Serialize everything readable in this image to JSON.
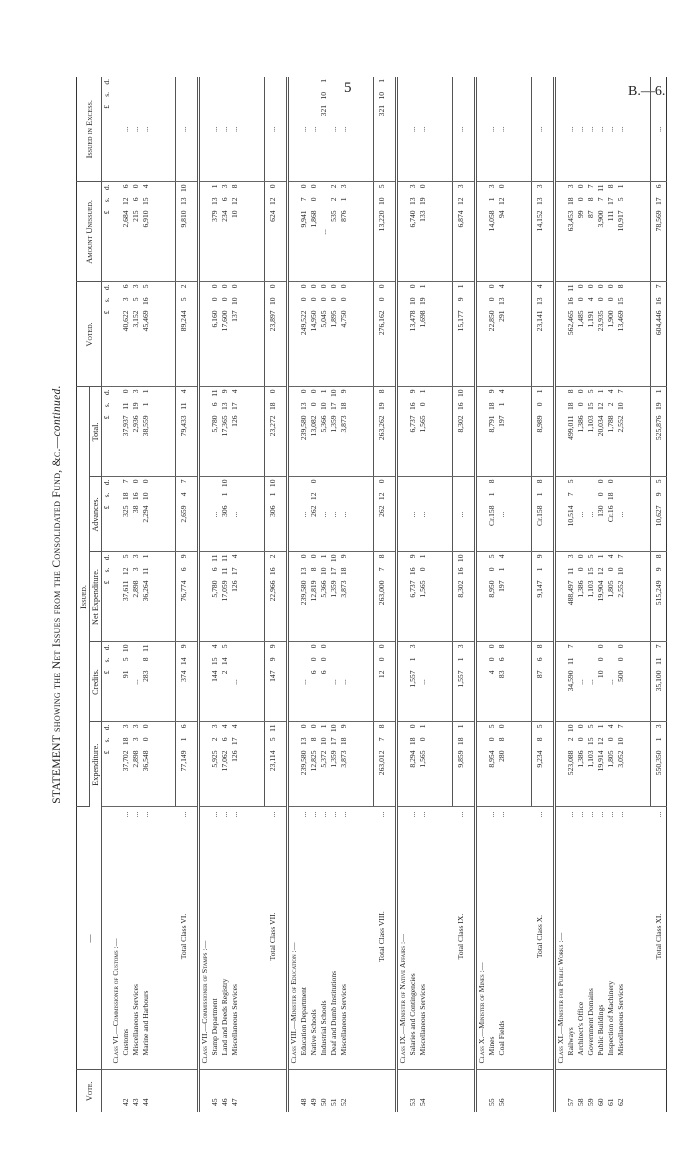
{
  "page_number": "5",
  "doc_ref": "B.—6.",
  "title_main": "STATEMENT showing the Net Issues from the Consolidated Fund, &c.—",
  "title_italic": "continued.",
  "header": {
    "vote": "Vote.",
    "desc": "—",
    "issued": "Issued.",
    "exp": "Expenditure.",
    "credits": "Credits.",
    "net": "Net Expenditure.",
    "adv": "Advances.",
    "total": "Total.",
    "voted": "Voted.",
    "unissued": "Amount Unissued.",
    "excess": "Issued in Excess.",
    "units": [
      "£",
      "s.",
      "d."
    ]
  },
  "leader": "...",
  "classes": [
    {
      "title": "Class VI.—Commissioner of Customs :—",
      "items": [
        {
          "vote": "42",
          "name": "Customs",
          "exp": [
            "37,702",
            "18",
            "3"
          ],
          "credits": [
            "91",
            "5",
            "10"
          ],
          "net": [
            "37,611",
            "12",
            "5"
          ],
          "adv": [
            "325",
            "18",
            "7"
          ],
          "total": [
            "37,937",
            "11",
            "0"
          ],
          "voted": [
            "40,622",
            "3",
            "6"
          ],
          "unissued": [
            "2,684",
            "12",
            "6"
          ],
          "excess": "..."
        },
        {
          "vote": "43",
          "name": "Miscellaneous Services",
          "exp": [
            "2,898",
            "3",
            "3"
          ],
          "credits": "...",
          "net": [
            "2,898",
            "3",
            "3"
          ],
          "adv": [
            "38",
            "16",
            "0"
          ],
          "total": [
            "2,936",
            "19",
            "3"
          ],
          "voted": [
            "3,152",
            "5",
            "3"
          ],
          "unissued": [
            "215",
            "6",
            "0"
          ],
          "excess": "..."
        },
        {
          "vote": "44",
          "name": "Marine and Harbours",
          "exp": [
            "36,548",
            "0",
            "0"
          ],
          "credits": [
            "283",
            "8",
            "11"
          ],
          "net": [
            "36,264",
            "11",
            "1"
          ],
          "adv": [
            "2,294",
            "10",
            "0"
          ],
          "total": [
            "38,559",
            "1",
            "1"
          ],
          "voted": [
            "45,469",
            "16",
            "5"
          ],
          "unissued": [
            "6,910",
            "15",
            "4"
          ],
          "excess": "..."
        }
      ],
      "total": {
        "label": "Total Class VI.",
        "exp": [
          "77,149",
          "1",
          "6"
        ],
        "credits": [
          "374",
          "14",
          "9"
        ],
        "net": [
          "76,774",
          "6",
          "9"
        ],
        "adv": [
          "2,659",
          "4",
          "7"
        ],
        "total": [
          "79,433",
          "11",
          "4"
        ],
        "voted": [
          "89,244",
          "5",
          "2"
        ],
        "unissued": [
          "9,810",
          "13",
          "10"
        ],
        "excess": "..."
      }
    },
    {
      "title": "Class VII.—Commissioner of Stamps :—",
      "items": [
        {
          "vote": "45",
          "name": "Stamp Department",
          "exp": [
            "5,925",
            "2",
            "3"
          ],
          "credits": [
            "144",
            "15",
            "4"
          ],
          "net": [
            "5,780",
            "6",
            "11"
          ],
          "adv": "...",
          "total": [
            "5,780",
            "6",
            "11"
          ],
          "voted": [
            "6,160",
            "0",
            "0"
          ],
          "unissued": [
            "379",
            "13",
            "1"
          ],
          "excess": "..."
        },
        {
          "vote": "46",
          "name": "Land and Deeds Registry",
          "exp": [
            "17,062",
            "6",
            "4"
          ],
          "credits": [
            "2",
            "14",
            "5"
          ],
          "net": [
            "17,059",
            "11",
            "11"
          ],
          "adv": [
            "306",
            "1",
            "10"
          ],
          "total": [
            "17,365",
            "13",
            "9"
          ],
          "voted": [
            "17,600",
            "0",
            "0"
          ],
          "unissued": [
            "234",
            "6",
            "3"
          ],
          "excess": "..."
        },
        {
          "vote": "47",
          "name": "Miscellaneous Services",
          "exp": [
            "126",
            "17",
            "4"
          ],
          "credits": "...",
          "net": [
            "126",
            "17",
            "4"
          ],
          "adv": "...",
          "total": [
            "126",
            "17",
            "4"
          ],
          "voted": [
            "137",
            "10",
            "0"
          ],
          "unissued": [
            "10",
            "12",
            "8"
          ],
          "excess": "..."
        }
      ],
      "total": {
        "label": "Total Class VII.",
        "exp": [
          "23,114",
          "5",
          "11"
        ],
        "credits": [
          "147",
          "9",
          "9"
        ],
        "net": [
          "22,966",
          "16",
          "2"
        ],
        "adv": [
          "306",
          "1",
          "10"
        ],
        "total": [
          "23,272",
          "18",
          "0"
        ],
        "voted": [
          "23,897",
          "10",
          "0"
        ],
        "unissued": [
          "624",
          "12",
          "0"
        ],
        "excess": "..."
      }
    },
    {
      "title": "Class VIII.—Minister of Education :—",
      "items": [
        {
          "vote": "48",
          "name": "Education Department",
          "exp": [
            "239,580",
            "13",
            "0"
          ],
          "credits": "...",
          "net": [
            "239,580",
            "13",
            "0"
          ],
          "adv": "...",
          "total": [
            "239,580",
            "13",
            "0"
          ],
          "voted": [
            "249,522",
            "0",
            "0"
          ],
          "unissued": [
            "9,941",
            "7",
            "0"
          ],
          "excess": "..."
        },
        {
          "vote": "49",
          "name": "Native Schools",
          "exp": [
            "12,825",
            "8",
            "0"
          ],
          "credits": [
            "6",
            "0",
            "0"
          ],
          "net": [
            "12,819",
            "8",
            "0"
          ],
          "adv": [
            "262",
            "12",
            "0"
          ],
          "total": [
            "13,082",
            "0",
            "0"
          ],
          "voted": [
            "14,950",
            "0",
            "0"
          ],
          "unissued": [
            "1,868",
            "0",
            "0"
          ],
          "excess": "..."
        },
        {
          "vote": "50",
          "name": "Industrial Schools",
          "exp": [
            "5,372",
            "10",
            "1"
          ],
          "credits": [
            "6",
            "0",
            "0"
          ],
          "net": [
            "5,366",
            "10",
            "1"
          ],
          "adv": "...",
          "total": [
            "5,366",
            "10",
            "1"
          ],
          "voted": [
            "5,045",
            "0",
            "0"
          ],
          "unissued": "...",
          "excess": [
            "321",
            "10",
            "1"
          ]
        },
        {
          "vote": "51",
          "name": "Deaf and Dumb Institutions",
          "exp": [
            "1,359",
            "17",
            "10"
          ],
          "credits": "...",
          "net": [
            "1,359",
            "17",
            "10"
          ],
          "adv": "...",
          "total": [
            "1,359",
            "17",
            "10"
          ],
          "voted": [
            "1,895",
            "0",
            "0"
          ],
          "unissued": [
            "535",
            "2",
            "2"
          ],
          "excess": "..."
        },
        {
          "vote": "52",
          "name": "Miscellaneous Services",
          "exp": [
            "3,873",
            "18",
            "9"
          ],
          "credits": "...",
          "net": [
            "3,873",
            "18",
            "9"
          ],
          "adv": "...",
          "total": [
            "3,873",
            "18",
            "9"
          ],
          "voted": [
            "4,750",
            "0",
            "0"
          ],
          "unissued": [
            "876",
            "1",
            "3"
          ],
          "excess": "..."
        }
      ],
      "total": {
        "label": "Total Class VIII.",
        "exp": [
          "263,012",
          "7",
          "8"
        ],
        "credits": [
          "12",
          "0",
          "0"
        ],
        "net": [
          "263,000",
          "7",
          "8"
        ],
        "adv": [
          "262",
          "12",
          "0"
        ],
        "total": [
          "263,262",
          "19",
          "8"
        ],
        "voted": [
          "276,162",
          "0",
          "0"
        ],
        "unissued": [
          "13,220",
          "10",
          "5"
        ],
        "excess": [
          "321",
          "10",
          "1"
        ]
      }
    },
    {
      "title": "Class IX.—Minister of Native Affairs :—",
      "items": [
        {
          "vote": "53",
          "name": "Salaries and Contingencies",
          "exp": [
            "8,294",
            "18",
            "0"
          ],
          "credits": [
            "1,557",
            "1",
            "3"
          ],
          "net": [
            "6,737",
            "16",
            "9"
          ],
          "adv": "...",
          "total": [
            "6,737",
            "16",
            "9"
          ],
          "voted": [
            "13,478",
            "10",
            "0"
          ],
          "unissued": [
            "6,740",
            "13",
            "3"
          ],
          "excess": "..."
        },
        {
          "vote": "54",
          "name": "Miscellaneous Services",
          "exp": [
            "1,565",
            "0",
            "1"
          ],
          "credits": "...",
          "net": [
            "1,565",
            "0",
            "1"
          ],
          "adv": "...",
          "total": [
            "1,565",
            "0",
            "1"
          ],
          "voted": [
            "1,698",
            "19",
            "1"
          ],
          "unissued": [
            "133",
            "19",
            "0"
          ],
          "excess": "..."
        }
      ],
      "total": {
        "label": "Total Class IX.",
        "exp": [
          "9,859",
          "18",
          "1"
        ],
        "credits": [
          "1,557",
          "1",
          "3"
        ],
        "net": [
          "8,302",
          "16",
          "10"
        ],
        "adv": "...",
        "total": [
          "8,302",
          "16",
          "10"
        ],
        "voted": [
          "15,177",
          "9",
          "1"
        ],
        "unissued": [
          "6,874",
          "12",
          "3"
        ],
        "excess": "..."
      }
    },
    {
      "title": "Class X.—Minister of Mines :—",
      "items": [
        {
          "vote": "55",
          "name": "Mines",
          "exp": [
            "8,954",
            "0",
            "5"
          ],
          "credits": [
            "4",
            "0",
            "0"
          ],
          "net": [
            "8,950",
            "0",
            "5"
          ],
          "adv": [
            "Cr.158",
            "1",
            "8"
          ],
          "total": [
            "8,791",
            "18",
            "9"
          ],
          "voted": [
            "22,850",
            "0",
            "0"
          ],
          "unissued": [
            "14,058",
            "1",
            "3"
          ],
          "excess": "..."
        },
        {
          "vote": "56",
          "name": "Coal Fields",
          "exp": [
            "280",
            "8",
            "0"
          ],
          "credits": [
            "83",
            "6",
            "8"
          ],
          "net": [
            "197",
            "1",
            "4"
          ],
          "adv": "...",
          "total": [
            "197",
            "1",
            "4"
          ],
          "voted": [
            "291",
            "13",
            "4"
          ],
          "unissued": [
            "94",
            "12",
            "0"
          ],
          "excess": "..."
        }
      ],
      "total": {
        "label": "Total Class X.",
        "exp": [
          "9,234",
          "8",
          "5"
        ],
        "credits": [
          "87",
          "6",
          "8"
        ],
        "net": [
          "9,147",
          "1",
          "9"
        ],
        "adv": [
          "Cr.158",
          "1",
          "8"
        ],
        "total": [
          "8,989",
          "0",
          "1"
        ],
        "voted": [
          "23,141",
          "13",
          "4"
        ],
        "unissued": [
          "14,152",
          "13",
          "3"
        ],
        "excess": "..."
      }
    },
    {
      "title": "Class XI.—Minister for Public Works :—",
      "items": [
        {
          "vote": "57",
          "name": "Railways",
          "exp": [
            "523,088",
            "2",
            "10"
          ],
          "credits": [
            "34,590",
            "11",
            "7"
          ],
          "net": [
            "488,497",
            "11",
            "3"
          ],
          "adv": [
            "10,514",
            "7",
            "5"
          ],
          "total": [
            "499,011",
            "18",
            "8"
          ],
          "voted": [
            "562,465",
            "16",
            "11"
          ],
          "unissued": [
            "63,453",
            "18",
            "3"
          ],
          "excess": "..."
        },
        {
          "vote": "58",
          "name": "Architect's Office",
          "exp": [
            "1,386",
            "0",
            "0"
          ],
          "credits": "...",
          "net": [
            "1,386",
            "0",
            "0"
          ],
          "adv": "...",
          "total": [
            "1,386",
            "0",
            "0"
          ],
          "voted": [
            "1,485",
            "0",
            "0"
          ],
          "unissued": [
            "99",
            "0",
            "0"
          ],
          "excess": "..."
        },
        {
          "vote": "59",
          "name": "Government Domains",
          "exp": [
            "1,103",
            "15",
            "5"
          ],
          "credits": "...",
          "net": [
            "1,103",
            "15",
            "5"
          ],
          "adv": "...",
          "total": [
            "1,103",
            "15",
            "5"
          ],
          "voted": [
            "1,191",
            "4",
            "0"
          ],
          "unissued": [
            "87",
            "8",
            "7"
          ],
          "excess": "..."
        },
        {
          "vote": "60",
          "name": "Public Buildings",
          "exp": [
            "19,914",
            "12",
            "1"
          ],
          "credits": [
            "10",
            "0",
            "0"
          ],
          "net": [
            "19,904",
            "12",
            "1"
          ],
          "adv": [
            "130",
            "0",
            "0"
          ],
          "total": [
            "20,034",
            "12",
            "1"
          ],
          "voted": [
            "23,935",
            "0",
            "0"
          ],
          "unissued": [
            "3,900",
            "7",
            "11"
          ],
          "excess": "..."
        },
        {
          "vote": "61",
          "name": "Inspection of Machinery",
          "exp": [
            "1,805",
            "0",
            "4"
          ],
          "credits": "...",
          "net": [
            "1,805",
            "0",
            "4"
          ],
          "adv": [
            "Cr.16",
            "18",
            "0"
          ],
          "total": [
            "1,788",
            "2",
            "4"
          ],
          "voted": [
            "1,900",
            "0",
            "0"
          ],
          "unissued": [
            "111",
            "17",
            "8"
          ],
          "excess": "..."
        },
        {
          "vote": "62",
          "name": "Miscellaneous Services",
          "exp": [
            "3,052",
            "10",
            "7"
          ],
          "credits": [
            "500",
            "0",
            "0"
          ],
          "net": [
            "2,552",
            "10",
            "7"
          ],
          "adv": "...",
          "total": [
            "2,552",
            "10",
            "7"
          ],
          "voted": [
            "13,469",
            "15",
            "8"
          ],
          "unissued": [
            "10,917",
            "5",
            "1"
          ],
          "excess": "..."
        }
      ],
      "total": {
        "label": "Total Class XI.",
        "exp": [
          "550,350",
          "1",
          "3"
        ],
        "credits": [
          "35,100",
          "11",
          "7"
        ],
        "net": [
          "515,249",
          "9",
          "8"
        ],
        "adv": [
          "10,627",
          "9",
          "5"
        ],
        "total": [
          "525,876",
          "19",
          "1"
        ],
        "voted": [
          "604,446",
          "16",
          "7"
        ],
        "unissued": [
          "78,569",
          "17",
          "6"
        ],
        "excess": "..."
      }
    }
  ]
}
